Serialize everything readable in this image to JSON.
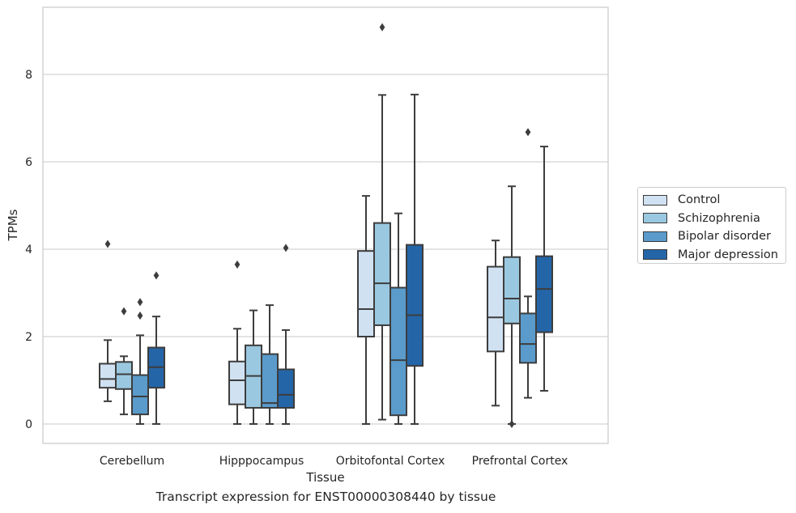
{
  "chart_data": {
    "type": "boxplot",
    "title": "",
    "caption": "Transcript expression for ENST00000308440 by tissue",
    "xlabel": "Tissue",
    "ylabel": "TPMs",
    "ylim": [
      -0.45,
      9.6
    ],
    "yticks": [
      0,
      2,
      4,
      6,
      8
    ],
    "grid": "horizontal",
    "legend_position": "right",
    "categories": [
      "Cerebellum",
      "Hipppocampus",
      "Orbitofontal Cortex",
      "Prefrontal Cortex"
    ],
    "series": [
      {
        "name": "Control",
        "color": "#d0e1f2",
        "boxes": [
          {
            "whislo": 0.52,
            "q1": 0.83,
            "med": 1.03,
            "q3": 1.38,
            "whishi": 1.92,
            "fliers": [
              4.12
            ]
          },
          {
            "whislo": 0.0,
            "q1": 0.45,
            "med": 1.0,
            "q3": 1.43,
            "whishi": 2.18,
            "fliers": [
              3.65
            ]
          },
          {
            "whislo": 0.0,
            "q1": 2.0,
            "med": 2.63,
            "q3": 3.96,
            "whishi": 5.22,
            "fliers": []
          },
          {
            "whislo": 0.42,
            "q1": 1.66,
            "med": 2.44,
            "q3": 3.6,
            "whishi": 4.2,
            "fliers": []
          }
        ]
      },
      {
        "name": "Schizophrenia",
        "color": "#9ac8e0",
        "boxes": [
          {
            "whislo": 0.22,
            "q1": 0.8,
            "med": 1.14,
            "q3": 1.42,
            "whishi": 1.55,
            "fliers": [
              2.58
            ]
          },
          {
            "whislo": 0.0,
            "q1": 0.37,
            "med": 1.1,
            "q3": 1.8,
            "whishi": 2.6,
            "fliers": []
          },
          {
            "whislo": 0.1,
            "q1": 2.26,
            "med": 3.22,
            "q3": 4.6,
            "whishi": 7.53,
            "fliers": [
              9.08
            ]
          },
          {
            "whislo": 0.0,
            "q1": 2.3,
            "med": 2.87,
            "q3": 3.82,
            "whishi": 5.44,
            "fliers": [
              0.0
            ]
          }
        ]
      },
      {
        "name": "Bipolar disorder",
        "color": "#5a9bcb",
        "boxes": [
          {
            "whislo": 0.0,
            "q1": 0.22,
            "med": 0.63,
            "q3": 1.12,
            "whishi": 2.03,
            "fliers": [
              2.48,
              2.79
            ]
          },
          {
            "whislo": 0.0,
            "q1": 0.37,
            "med": 0.48,
            "q3": 1.6,
            "whishi": 2.72,
            "fliers": []
          },
          {
            "whislo": 0.0,
            "q1": 0.2,
            "med": 1.46,
            "q3": 3.12,
            "whishi": 4.82,
            "fliers": []
          },
          {
            "whislo": 0.6,
            "q1": 1.4,
            "med": 1.83,
            "q3": 2.53,
            "whishi": 2.92,
            "fliers": [
              6.68
            ]
          }
        ]
      },
      {
        "name": "Major depression",
        "color": "#2465a8",
        "boxes": [
          {
            "whislo": 0.0,
            "q1": 0.83,
            "med": 1.3,
            "q3": 1.75,
            "whishi": 2.46,
            "fliers": [
              3.4
            ]
          },
          {
            "whislo": 0.0,
            "q1": 0.37,
            "med": 0.67,
            "q3": 1.25,
            "whishi": 2.15,
            "fliers": [
              4.03
            ]
          },
          {
            "whislo": 0.0,
            "q1": 1.33,
            "med": 2.49,
            "q3": 4.1,
            "whishi": 7.54,
            "fliers": []
          },
          {
            "whislo": 0.76,
            "q1": 2.1,
            "med": 3.09,
            "q3": 3.84,
            "whishi": 6.35,
            "fliers": []
          }
        ]
      }
    ]
  }
}
